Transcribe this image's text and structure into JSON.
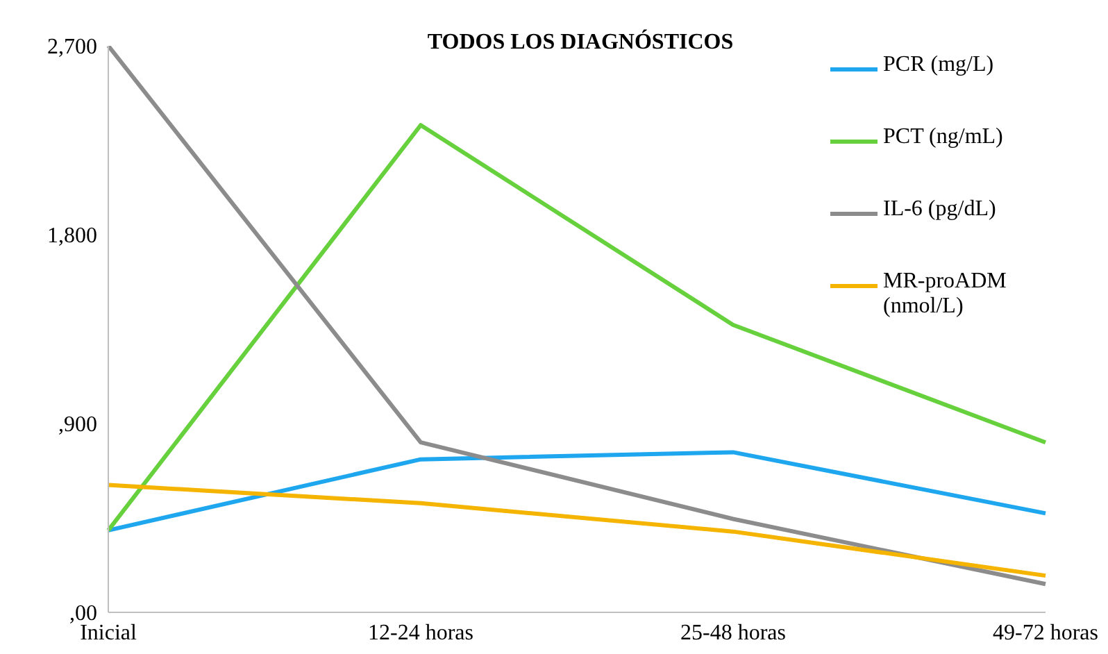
{
  "chart_data": {
    "type": "line",
    "title": "TODOS LOS DIAGNÓSTICOS",
    "categories": [
      "Inicial",
      "12-24 horas",
      "25-48 horas",
      "49-72 horas"
    ],
    "series": [
      {
        "name": "PCR  (mg/L)",
        "color": "#1ea7ef",
        "values": [
          391,
          729,
          763,
          472
        ]
      },
      {
        "name": "PCT (ng/mL)",
        "color": "#66d13c",
        "values": [
          391,
          2322,
          1370,
          810
        ]
      },
      {
        "name": "IL-6 (pg/dL)",
        "color": "#8c8c8c",
        "values": [
          2700,
          810,
          445,
          135
        ]
      },
      {
        "name": "MR-proADM (nmol/L)",
        "color": "#f5b400",
        "values": [
          607,
          520,
          385,
          175
        ]
      }
    ],
    "ylim": [
      0,
      2700
    ],
    "yticks": [
      {
        "value": 0,
        "label": ",00"
      },
      {
        "value": 900,
        "label": ",900"
      },
      {
        "value": 1800,
        "label": "1,800"
      },
      {
        "value": 2700,
        "label": "2,700"
      }
    ],
    "legend": "right",
    "marker": "none",
    "line_style": "solid"
  }
}
